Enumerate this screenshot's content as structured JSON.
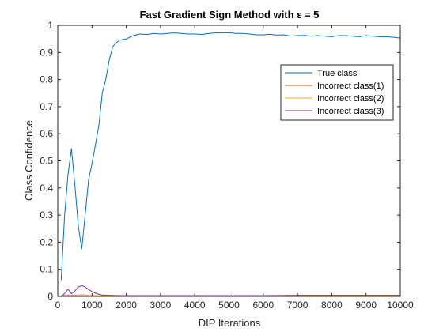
{
  "chart_data": {
    "type": "line",
    "title": "Fast Gradient Sign Method with ε = 5",
    "xlabel": "DIP Iterations",
    "ylabel": "Class Confidence",
    "xlim": [
      0,
      10000
    ],
    "ylim": [
      0,
      1
    ],
    "xticks": [
      0,
      1000,
      2000,
      3000,
      4000,
      5000,
      6000,
      7000,
      8000,
      9000,
      10000
    ],
    "yticks": [
      0,
      0.1,
      0.2,
      0.3,
      0.4,
      0.5,
      0.6,
      0.7,
      0.8,
      0.9,
      1
    ],
    "grid": false,
    "legend_position": "top-right",
    "series": [
      {
        "name": "True class",
        "color": "#0072BD",
        "x": [
          100,
          200,
          300,
          400,
          500,
          600,
          700,
          800,
          900,
          1000,
          1100,
          1200,
          1300,
          1400,
          1500,
          1600,
          1700,
          1800,
          2000,
          2200,
          2400,
          2600,
          2800,
          3000,
          3200,
          3400,
          3600,
          3800,
          4000,
          4200,
          4400,
          4600,
          4800,
          5000,
          5200,
          5400,
          5600,
          5800,
          6000,
          6200,
          6400,
          6600,
          6800,
          7000,
          7200,
          7400,
          7600,
          7800,
          8000,
          8200,
          8400,
          8600,
          8800,
          9000,
          9200,
          9400,
          9600,
          9800,
          10000
        ],
        "values": [
          0.06,
          0.3,
          0.45,
          0.545,
          0.41,
          0.26,
          0.175,
          0.3,
          0.43,
          0.49,
          0.56,
          0.63,
          0.75,
          0.8,
          0.87,
          0.92,
          0.935,
          0.945,
          0.95,
          0.962,
          0.968,
          0.966,
          0.97,
          0.968,
          0.97,
          0.972,
          0.97,
          0.968,
          0.968,
          0.966,
          0.97,
          0.972,
          0.972,
          0.973,
          0.97,
          0.97,
          0.968,
          0.965,
          0.965,
          0.967,
          0.964,
          0.965,
          0.96,
          0.962,
          0.963,
          0.96,
          0.962,
          0.96,
          0.958,
          0.962,
          0.962,
          0.96,
          0.958,
          0.962,
          0.96,
          0.958,
          0.958,
          0.956,
          0.953
        ]
      },
      {
        "name": "Incorrect class(1)",
        "color": "#D95319",
        "x": [
          100,
          300,
          500,
          700,
          900,
          1100,
          1300,
          1500,
          2000,
          3000,
          4000,
          5000,
          6000,
          7000,
          8000,
          9000,
          10000
        ],
        "values": [
          0.003,
          0.005,
          0.004,
          0.006,
          0.004,
          0.003,
          0.002,
          0.002,
          0.001,
          0.001,
          0.001,
          0.001,
          0.001,
          0.001,
          0.001,
          0.001,
          0.001
        ]
      },
      {
        "name": "Incorrect class(2)",
        "color": "#EDB120",
        "x": [
          100,
          300,
          500,
          700,
          900,
          1100,
          1300,
          1500,
          2000,
          3000,
          4000,
          5000,
          6000,
          7000,
          8000,
          9000,
          10000
        ],
        "values": [
          0.002,
          0.004,
          0.003,
          0.005,
          0.003,
          0.002,
          0.001,
          0.001,
          0.001,
          0.001,
          0.001,
          0.001,
          0.001,
          0.001,
          0.001,
          0.001,
          0.001
        ]
      },
      {
        "name": "Incorrect class(3)",
        "color": "#7E2F8E",
        "x": [
          100,
          200,
          300,
          400,
          500,
          600,
          700,
          800,
          900,
          1000,
          1100,
          1200,
          1300,
          1500,
          1800,
          2000,
          3000,
          4000,
          5000,
          6000,
          7000,
          8000,
          9000,
          10000
        ],
        "values": [
          0.0,
          0.01,
          0.027,
          0.01,
          0.02,
          0.035,
          0.04,
          0.035,
          0.025,
          0.018,
          0.012,
          0.008,
          0.005,
          0.004,
          0.003,
          0.003,
          0.003,
          0.003,
          0.003,
          0.003,
          0.004,
          0.004,
          0.004,
          0.004
        ]
      }
    ]
  }
}
